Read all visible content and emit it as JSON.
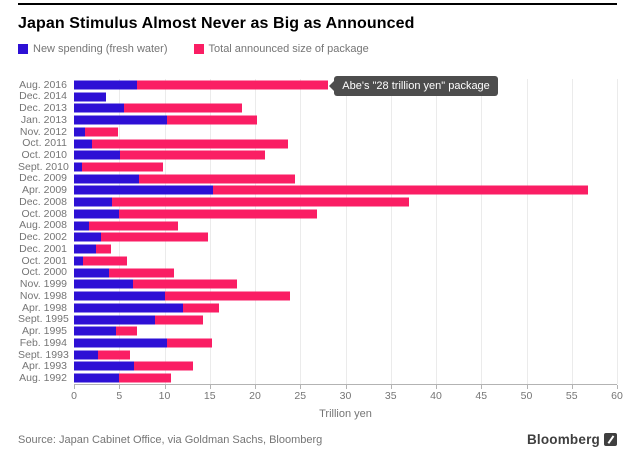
{
  "header": {
    "title": "Japan Stimulus Almost Never as Big as Announced"
  },
  "legend": [
    {
      "label": "New spending (fresh water)",
      "color": "#2d10d5"
    },
    {
      "label": "Total announced size of package",
      "color": "#fa1e64"
    }
  ],
  "annotation": {
    "text": "Abe's \"28 trillion yen\" package"
  },
  "chart_data": {
    "type": "bar",
    "orientation": "horizontal",
    "title": "Japan Stimulus Almost Never as Big as Announced",
    "categories": [
      "Aug. 2016",
      "Dec. 2014",
      "Dec. 2013",
      "Jan. 2013",
      "Nov. 2012",
      "Oct. 2011",
      "Oct. 2010",
      "Sept. 2010",
      "Dec. 2009",
      "Apr. 2009",
      "Dec. 2008",
      "Oct. 2008",
      "Aug. 2008",
      "Dec. 2002",
      "Dec. 2001",
      "Oct. 2001",
      "Oct. 2000",
      "Nov. 1999",
      "Nov. 1998",
      "Apr. 1998",
      "Sept. 1995",
      "Apr. 1995",
      "Feb. 1994",
      "Sept. 1993",
      "Apr. 1993",
      "Aug. 1992"
    ],
    "series": [
      {
        "name": "New spending (fresh water)",
        "color": "#2d10d5",
        "values": [
          7.0,
          3.5,
          5.5,
          10.3,
          1.2,
          2.0,
          5.1,
          0.9,
          7.2,
          15.4,
          4.2,
          5.0,
          1.7,
          3.0,
          2.4,
          1.0,
          3.9,
          6.5,
          10.0,
          12.0,
          8.9,
          4.6,
          10.3,
          2.6,
          6.6,
          5.0
        ]
      },
      {
        "name": "Total announced size of package",
        "color": "#fa1e64",
        "values": [
          28.1,
          3.5,
          18.6,
          20.2,
          4.9,
          23.6,
          21.1,
          9.8,
          24.4,
          56.8,
          37.0,
          26.9,
          11.5,
          14.8,
          4.1,
          5.9,
          11.0,
          18.0,
          23.9,
          16.0,
          14.2,
          7.0,
          15.3,
          6.2,
          13.2,
          10.7
        ]
      }
    ],
    "xlabel": "Trillion yen",
    "ylabel": "",
    "xlim": [
      0,
      60
    ],
    "xticks": [
      0,
      5,
      10,
      15,
      20,
      25,
      30,
      35,
      40,
      45,
      50,
      55,
      60
    ],
    "grid": true,
    "gridline_step": 5,
    "legend_position": "top",
    "annotation": {
      "text": "Abe's \"28 trillion yen\" package",
      "target_category": "Aug. 2016",
      "target_value": 28.1
    }
  },
  "footer": {
    "source": "Source: Japan Cabinet Office, via Goldman Sachs, Bloomberg",
    "brand": "Bloomberg"
  }
}
